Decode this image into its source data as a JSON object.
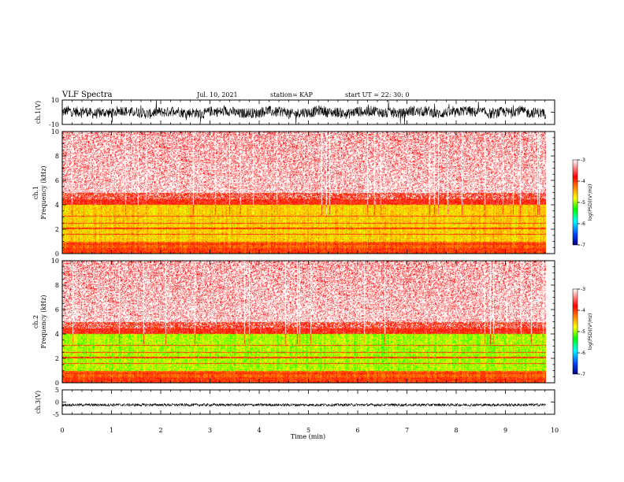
{
  "header": {
    "title": "VLF Spectra",
    "date": "Jul. 10, 2021",
    "station": "station= KAP",
    "start": "start  UT =   22: 30: 0"
  },
  "chart_data": [
    {
      "id": "ch1-waveform",
      "type": "line",
      "ylabel": "ch.1(V)",
      "ylim": [
        -10,
        10
      ],
      "yticks": [
        "10",
        "-10"
      ],
      "xlim": [
        0,
        10
      ],
      "data_extent": [
        0,
        9.82
      ],
      "trace_range": [
        -3,
        3
      ],
      "color": "#000000"
    },
    {
      "id": "ch1-spectrogram",
      "type": "heatmap",
      "ylabel_line1": "ch.1",
      "ylabel_line2": "Frequency (kHz)",
      "ylim": [
        0,
        10
      ],
      "yticks": [
        "0",
        "2",
        "4",
        "6",
        "8",
        "10"
      ],
      "xlim": [
        0,
        10
      ],
      "colorbar": {
        "label": "log(PSD)(V²/Hz)",
        "range": [
          -7,
          -3
        ],
        "ticks": [
          "-3",
          "-4",
          "-5",
          "-6",
          "-7"
        ],
        "colors": [
          "#000080",
          "#0040ff",
          "#00ffff",
          "#00ff00",
          "#ffff00",
          "#ff8000",
          "#ff0000",
          "#ffffff"
        ]
      }
    },
    {
      "id": "ch2-spectrogram",
      "type": "heatmap",
      "ylabel_line1": "ch.2",
      "ylabel_line2": "Frequency (kHz)",
      "ylim": [
        0,
        10
      ],
      "yticks": [
        "0",
        "2",
        "4",
        "6",
        "8",
        "10"
      ],
      "xlim": [
        0,
        10
      ],
      "colorbar": {
        "label": "log(PSD)(V²/Hz)",
        "range": [
          -7,
          -3
        ],
        "ticks": [
          "-3",
          "-4",
          "-5",
          "-6",
          "-7"
        ],
        "colors": [
          "#000080",
          "#0040ff",
          "#00ffff",
          "#00ff00",
          "#ffff00",
          "#ff8000",
          "#ff0000",
          "#ffffff"
        ]
      }
    },
    {
      "id": "ch3-waveform",
      "type": "line",
      "ylabel": "ch.3(V)",
      "ylim": [
        -5,
        5
      ],
      "yticks": [
        "5",
        "0",
        "-5"
      ],
      "xlim": [
        0,
        10
      ],
      "data_extent": [
        0,
        9.82
      ],
      "trace_range": [
        -1.7,
        -0.6
      ],
      "color": "#000000",
      "xlabel": "Time (min)",
      "xticks": [
        "0",
        "1",
        "2",
        "3",
        "4",
        "5",
        "6",
        "7",
        "8",
        "9",
        "10"
      ]
    }
  ]
}
